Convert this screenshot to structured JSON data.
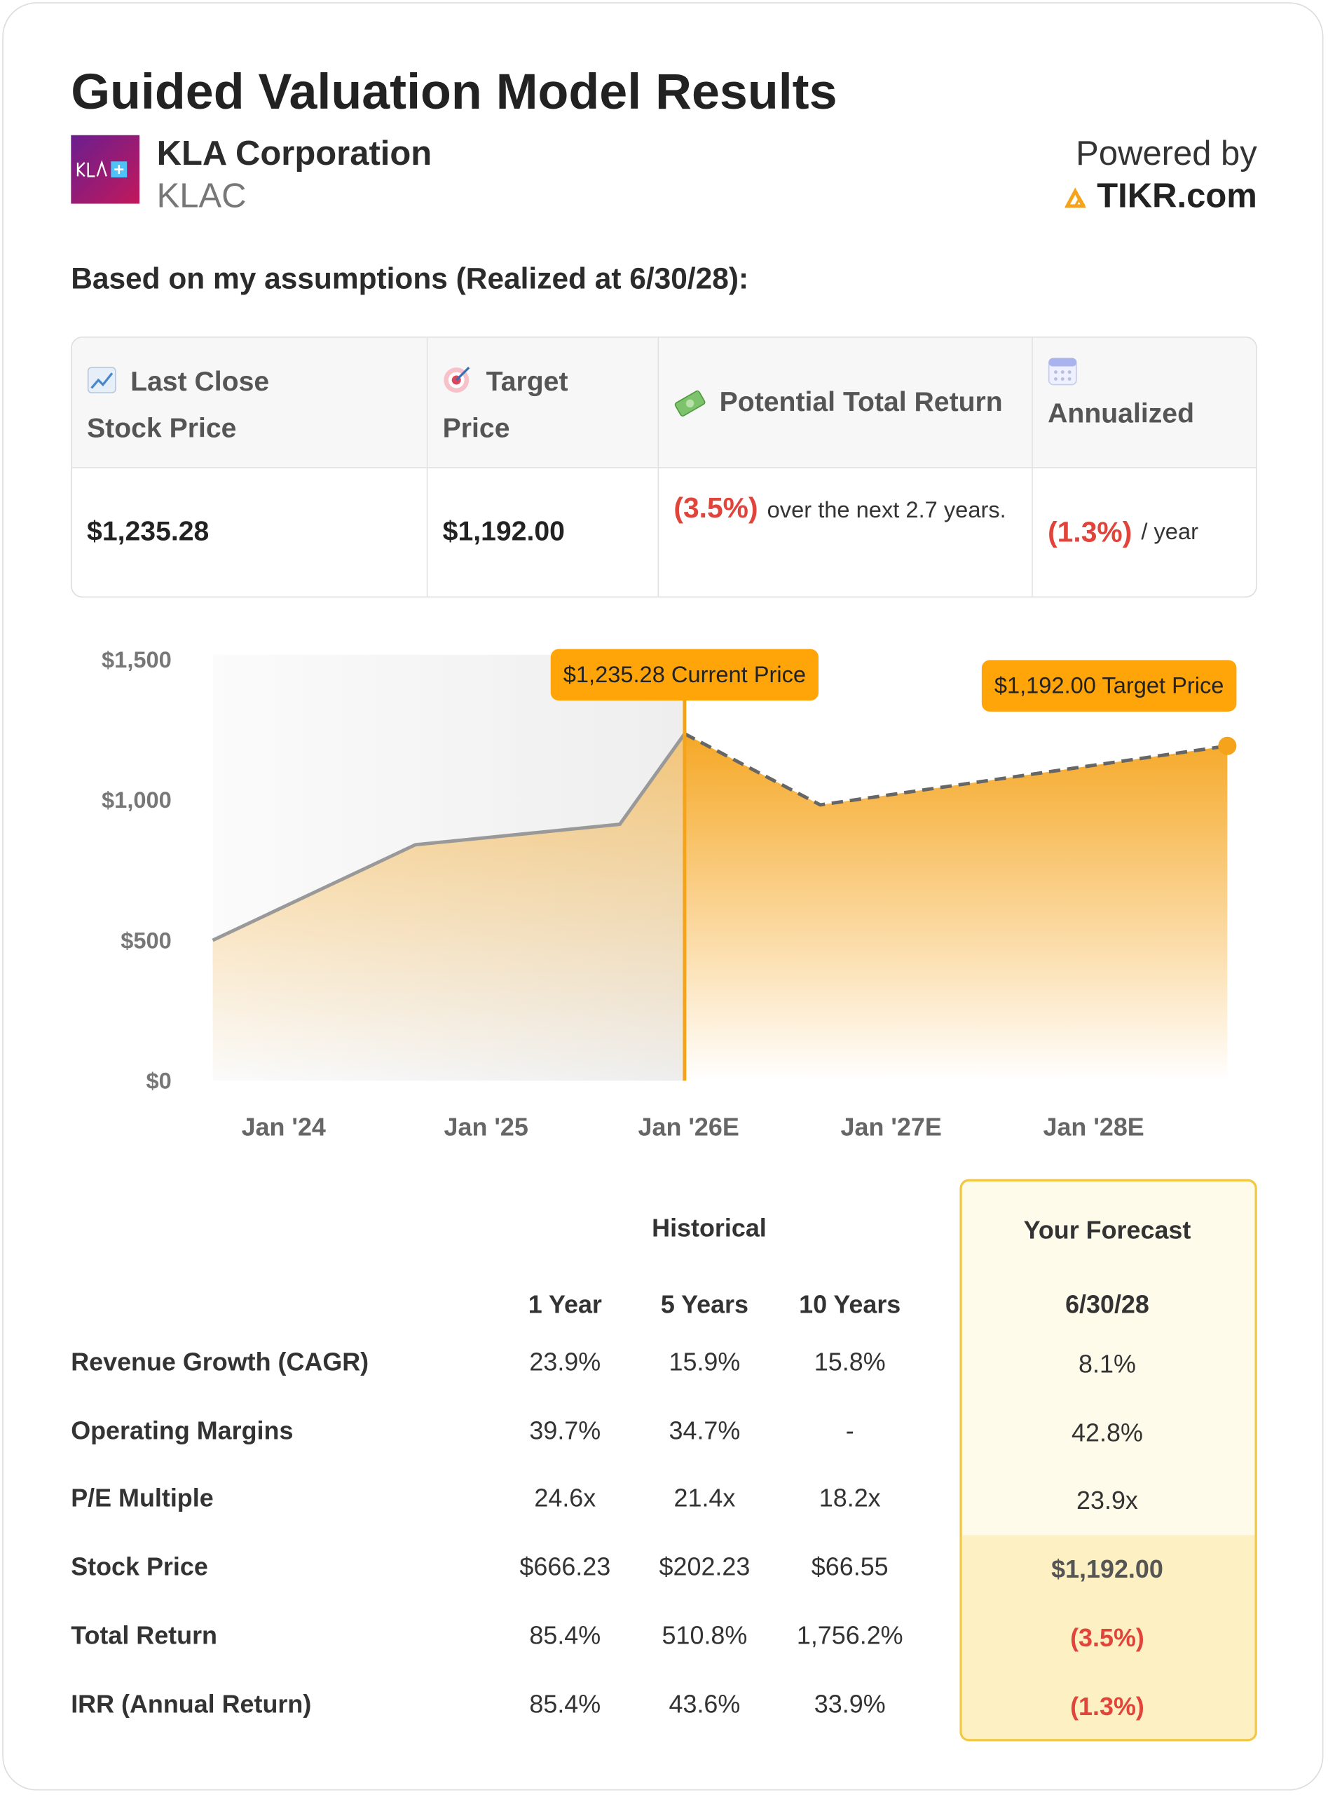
{
  "header": {
    "title": "Guided Valuation Model Results",
    "company": "KLA Corporation",
    "ticker": "KLAC",
    "powered_by": "Powered by",
    "brand": "TIKR.com"
  },
  "assumptions": "Based on my assumptions (Realized at 6/30/28):",
  "summary": {
    "headers": [
      "Last Close Stock Price",
      "Target Price",
      "Potential Total Return",
      "Annualized"
    ],
    "cells": [
      {
        "text": "$1,235.28"
      },
      {
        "text": "$1,192.00"
      },
      {
        "highlight": "(3.5%)",
        "text": "over the next 2.7 years."
      },
      {
        "highlight": "(1.3%)",
        "text": "/ year"
      }
    ]
  },
  "chart_data": {
    "type": "area",
    "xlim": [
      2023.65,
      2028.66
    ],
    "xticks": [
      {
        "value": 2024,
        "label": "Jan '24"
      },
      {
        "value": 2025,
        "label": "Jan '25"
      },
      {
        "value": 2026,
        "label": "Jan '26E"
      },
      {
        "value": 2027,
        "label": "Jan '27E"
      },
      {
        "value": 2028,
        "label": "Jan '28E"
      }
    ],
    "ylim": [
      0,
      1500
    ],
    "yticks": [
      {
        "value": 0,
        "label": "$0"
      },
      {
        "value": 500,
        "label": "$500"
      },
      {
        "value": 1000,
        "label": "$1,000"
      },
      {
        "value": 1500,
        "label": "$1,500"
      }
    ],
    "series": [
      {
        "color": "#999999",
        "x": [
          2023.65,
          2024.65,
          2025.66,
          2025.98
        ],
        "values": [
          500,
          840,
          913,
          1235.28
        ],
        "value_labels": [
          null,
          null,
          null,
          "$1,235.28 Current Price"
        ]
      },
      {
        "color": "#f5a31a",
        "x": [
          2025.98,
          2026.65,
          2028.66
        ],
        "values": [
          1235.28,
          982,
          1192
        ],
        "value_labels": [
          null,
          null,
          "$1,192.00 Target Price"
        ]
      }
    ]
  },
  "metrics": {
    "group_headers": [
      "Historical",
      "Your Forecast"
    ],
    "columns": [
      "1 Year",
      "5 Years",
      "10 Years",
      "6/30/28"
    ],
    "rows": [
      {
        "label": "Revenue Growth (CAGR)",
        "values": [
          "23.9%",
          "15.9%",
          "15.8%",
          "8.1%"
        ]
      },
      {
        "label": "Operating Margins",
        "values": [
          "39.7%",
          "34.7%",
          "-",
          "42.8%"
        ]
      },
      {
        "label": "P/E Multiple",
        "values": [
          "24.6x",
          "21.4x",
          "18.2x",
          "23.9x"
        ]
      },
      {
        "label": "Stock Price",
        "values": [
          "$666.23",
          "$202.23",
          "$66.55",
          "$1,192.00"
        ]
      },
      {
        "label": "Total Return",
        "values": [
          "85.4%",
          "510.8%",
          "1,756.2%",
          "(3.5%)"
        ]
      },
      {
        "label": "IRR (Annual Return)",
        "values": [
          "85.4%",
          "43.6%",
          "33.9%",
          "(1.3%)"
        ]
      }
    ]
  }
}
